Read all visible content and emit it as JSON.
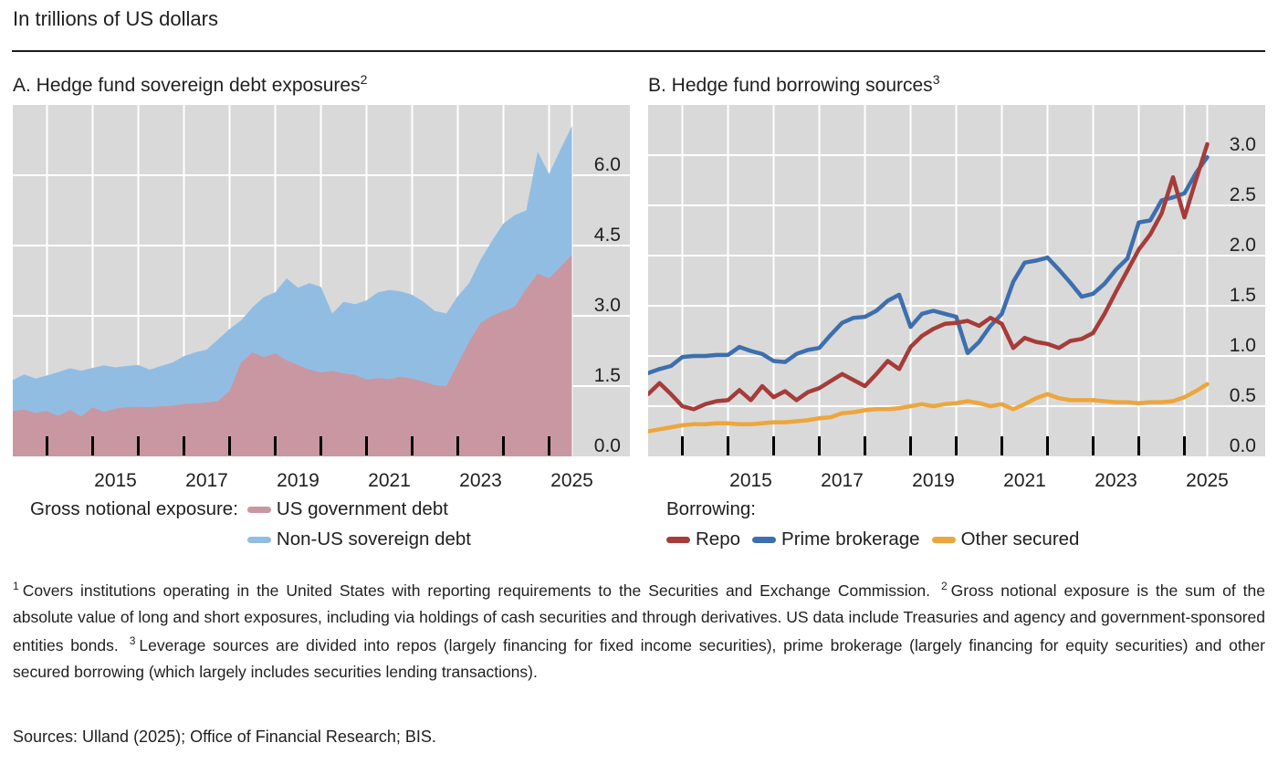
{
  "header": {
    "title": "In trillions of US dollars"
  },
  "colors": {
    "plot_bg": "#d9d9d9",
    "grid": "#ffffff",
    "tick": "#000000",
    "axis_text": "#1f1f1f",
    "us_gov": "#c997a2",
    "non_us": "#92bde3",
    "repo": "#a63c39",
    "prime": "#3d6faf",
    "other": "#eda63c"
  },
  "chart_data": [
    {
      "type": "area",
      "stacked": true,
      "title": "A. Hedge fund sovereign debt exposures",
      "title_sup": "2",
      "legend_title": "Gross notional exposure:",
      "x_start": 2013.25,
      "x_step": 0.25,
      "xlim": [
        2013.25,
        2025.5
      ],
      "ylim": [
        0,
        7.5
      ],
      "yticks": [
        0,
        1.5,
        3.0,
        4.5,
        6.0
      ],
      "ytick_labels": [
        "0.0",
        "1.5",
        "3.0",
        "4.5",
        "6.0"
      ],
      "xlabel_years": [
        2015,
        2017,
        2019,
        2021,
        2023,
        2025
      ],
      "grid": true,
      "legend_position": "below",
      "series": [
        {
          "name": "US government debt",
          "color_key": "us_gov",
          "values": [
            0.97,
            1.0,
            0.93,
            0.97,
            0.86,
            1.0,
            0.85,
            1.05,
            0.95,
            1.02,
            1.05,
            1.06,
            1.05,
            1.07,
            1.08,
            1.12,
            1.13,
            1.15,
            1.18,
            1.4,
            2.0,
            2.22,
            2.12,
            2.2,
            2.05,
            1.95,
            1.85,
            1.79,
            1.83,
            1.77,
            1.74,
            1.64,
            1.67,
            1.65,
            1.7,
            1.66,
            1.6,
            1.52,
            1.5,
            1.98,
            2.45,
            2.85,
            3.0,
            3.1,
            3.2,
            3.58,
            3.9,
            3.8,
            4.05,
            4.3
          ]
        },
        {
          "name": "Non-US sovereign debt",
          "color_key": "non_us",
          "values": [
            0.66,
            0.75,
            0.73,
            0.76,
            0.94,
            0.88,
            0.98,
            0.84,
            0.99,
            0.88,
            0.88,
            0.89,
            0.8,
            0.86,
            0.92,
            1.02,
            1.09,
            1.13,
            1.32,
            1.32,
            0.9,
            0.96,
            1.28,
            1.3,
            1.75,
            1.65,
            1.85,
            1.83,
            1.22,
            1.53,
            1.51,
            1.69,
            1.83,
            1.9,
            1.82,
            1.79,
            1.7,
            1.58,
            1.55,
            1.44,
            1.25,
            1.35,
            1.6,
            1.87,
            1.95,
            1.67,
            2.6,
            2.23,
            2.5,
            2.75
          ]
        }
      ]
    },
    {
      "type": "line",
      "stacked": false,
      "title": "B. Hedge fund borrowing sources",
      "title_sup": "3",
      "legend_title": "Borrowing:",
      "x_start": 2013.25,
      "x_step": 0.25,
      "xlim": [
        2013.25,
        2025.5
      ],
      "ylim": [
        0,
        3.5
      ],
      "yticks": [
        0,
        0.5,
        1.0,
        1.5,
        2.0,
        2.5,
        3.0
      ],
      "ytick_labels": [
        "0.0",
        "0.5",
        "1.0",
        "1.5",
        "2.0",
        "2.5",
        "3.0"
      ],
      "xlabel_years": [
        2015,
        2017,
        2019,
        2021,
        2023,
        2025
      ],
      "grid": true,
      "legend_position": "below",
      "draw_order": [
        1,
        2,
        0
      ],
      "series": [
        {
          "name": "Repo",
          "color_key": "repo",
          "values": [
            0.62,
            0.73,
            0.62,
            0.5,
            0.47,
            0.52,
            0.55,
            0.56,
            0.66,
            0.56,
            0.7,
            0.59,
            0.65,
            0.56,
            0.64,
            0.68,
            0.75,
            0.82,
            0.76,
            0.7,
            0.82,
            0.95,
            0.87,
            1.09,
            1.2,
            1.27,
            1.32,
            1.33,
            1.35,
            1.3,
            1.38,
            1.32,
            1.08,
            1.18,
            1.14,
            1.12,
            1.08,
            1.15,
            1.17,
            1.23,
            1.42,
            1.64,
            1.85,
            2.06,
            2.21,
            2.42,
            2.78,
            2.38,
            2.75,
            3.11
          ]
        },
        {
          "name": "Prime brokerage",
          "color_key": "prime",
          "values": [
            0.83,
            0.87,
            0.9,
            0.99,
            1.0,
            1.0,
            1.01,
            1.01,
            1.09,
            1.05,
            1.02,
            0.95,
            0.94,
            1.02,
            1.06,
            1.08,
            1.21,
            1.33,
            1.38,
            1.39,
            1.45,
            1.55,
            1.61,
            1.29,
            1.42,
            1.45,
            1.42,
            1.39,
            1.03,
            1.14,
            1.3,
            1.42,
            1.74,
            1.93,
            1.95,
            1.98,
            1.86,
            1.73,
            1.59,
            1.62,
            1.72,
            1.86,
            1.97,
            2.33,
            2.35,
            2.55,
            2.58,
            2.62,
            2.82,
            2.98
          ]
        },
        {
          "name": "Other secured",
          "color_key": "other",
          "values": [
            0.25,
            0.27,
            0.29,
            0.31,
            0.32,
            0.32,
            0.33,
            0.33,
            0.32,
            0.32,
            0.33,
            0.34,
            0.34,
            0.35,
            0.36,
            0.38,
            0.39,
            0.43,
            0.44,
            0.46,
            0.47,
            0.47,
            0.48,
            0.5,
            0.52,
            0.5,
            0.52,
            0.53,
            0.55,
            0.53,
            0.5,
            0.52,
            0.47,
            0.52,
            0.58,
            0.62,
            0.58,
            0.56,
            0.56,
            0.56,
            0.55,
            0.54,
            0.54,
            0.53,
            0.54,
            0.54,
            0.55,
            0.59,
            0.65,
            0.72
          ]
        }
      ]
    }
  ],
  "footnotes": [
    {
      "sup": "1",
      "text": "Covers institutions operating in the United States with reporting requirements to the Securities and Exchange Commission."
    },
    {
      "sup": "2",
      "text": "Gross notional exposure is the sum of the absolute value of long and short exposures, including via holdings of cash securities and through derivatives. US data include Treasuries and agency and government-sponsored entities bonds."
    },
    {
      "sup": "3",
      "text": "Leverage sources are divided into repos (largely financing for fixed income securities), prime brokerage (largely financing for equity securities) and other secured borrowing (which largely includes securities lending transactions)."
    }
  ],
  "footer": {
    "sources": "Sources: Ulland (2025); Office of Financial Research; BIS."
  }
}
